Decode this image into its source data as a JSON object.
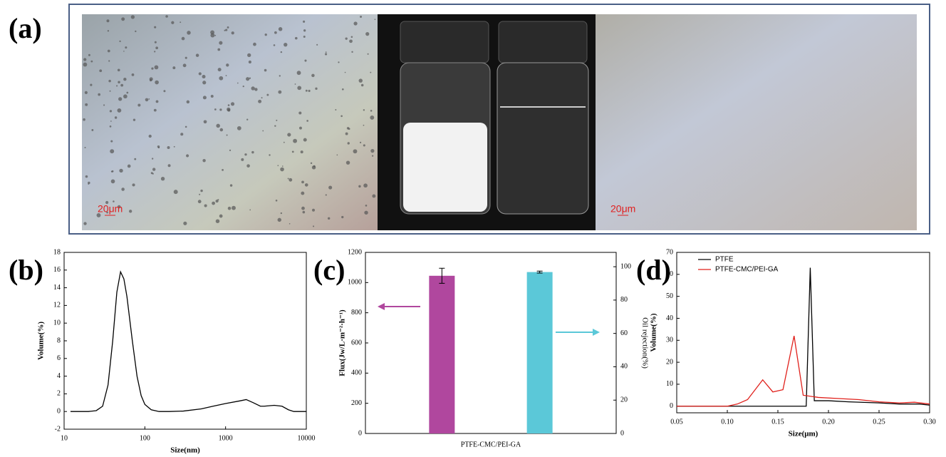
{
  "panel_a": {
    "label": "(a)",
    "scale_bars": [
      "20μm",
      "20μm"
    ]
  },
  "chart_data": [
    {
      "type": "line",
      "panel_label": "(b)",
      "xlabel": "Size(nm)",
      "ylabel": "Volume(%)",
      "xscale": "log",
      "xlim": [
        10,
        10000
      ],
      "xticks": [
        10,
        100,
        1000,
        10000
      ],
      "ylim": [
        -2,
        18
      ],
      "yticks": [
        -2,
        0,
        2,
        4,
        6,
        8,
        10,
        12,
        14,
        16,
        18
      ],
      "series": [
        {
          "color": "#000000",
          "x": [
            12,
            20,
            25,
            30,
            35,
            40,
            45,
            50,
            55,
            60,
            70,
            80,
            90,
            100,
            120,
            150,
            200,
            300,
            500,
            700,
            1000,
            1500,
            1800,
            2200,
            2700,
            3000,
            4000,
            5000,
            6000,
            7000,
            8000,
            10000
          ],
          "values": [
            0,
            0,
            0.1,
            0.6,
            3,
            8,
            13.5,
            15.8,
            15,
            13,
            8,
            4,
            1.8,
            0.8,
            0.2,
            0,
            0,
            0.05,
            0.3,
            0.6,
            0.9,
            1.2,
            1.35,
            1.0,
            0.6,
            0.6,
            0.7,
            0.6,
            0.2,
            0,
            0,
            0
          ]
        }
      ]
    },
    {
      "type": "bar",
      "panel_label": "(c)",
      "ylabel": "Flux(Jw/L·m⁻²·h⁻¹)",
      "y2label": "Oil rejection(%)",
      "categories": [
        "PTFE-CMC/PEI-GA"
      ],
      "ylim": [
        0,
        1200
      ],
      "yticks": [
        0,
        200,
        400,
        600,
        800,
        1000,
        1200
      ],
      "y2lim": [
        0,
        108.6
      ],
      "y2ticks": [
        0,
        20,
        40,
        60,
        80,
        100
      ],
      "series": [
        {
          "color": "#b0479e",
          "values": [
            1045
          ],
          "errors": [
            50
          ]
        },
        {
          "color": "#5bc8d8",
          "values": [
            96.8
          ],
          "errors": [
            0.6
          ],
          "axis": "y2"
        }
      ]
    },
    {
      "type": "line",
      "panel_label": "(d)",
      "xlabel": "Size(μm)",
      "ylabel": "Volume(%)",
      "xlim": [
        0.05,
        0.3
      ],
      "xticks": [
        0.05,
        {
          "value": 0.1,
          "label": "0.10"
        },
        0.15,
        {
          "value": 0.2,
          "label": "0.20"
        },
        0.25,
        {
          "value": 0.3,
          "label": "0.30"
        }
      ],
      "ylim": [
        -3,
        70
      ],
      "yticks": [
        0,
        10,
        20,
        30,
        40,
        50,
        60,
        70
      ],
      "legend": "upper left",
      "series": [
        {
          "name": "PTFE",
          "color": "#000000",
          "x": [
            0.05,
            0.17,
            0.178,
            0.182,
            0.186,
            0.2,
            0.22,
            0.25,
            0.27,
            0.29,
            0.3
          ],
          "values": [
            0,
            0,
            0,
            63,
            2.5,
            2.5,
            2,
            1.5,
            1,
            1,
            0.5
          ]
        },
        {
          "name": "PTFE-CMC/PEI-GA",
          "color": "#e0201b",
          "x": [
            0.05,
            0.1,
            0.11,
            0.12,
            0.135,
            0.145,
            0.155,
            0.166,
            0.175,
            0.19,
            0.21,
            0.23,
            0.25,
            0.27,
            0.285,
            0.3
          ],
          "values": [
            0,
            0,
            1,
            3,
            12,
            6.5,
            7.5,
            32,
            5,
            4,
            3.5,
            3,
            2,
            1.5,
            1.8,
            1
          ]
        }
      ]
    }
  ]
}
